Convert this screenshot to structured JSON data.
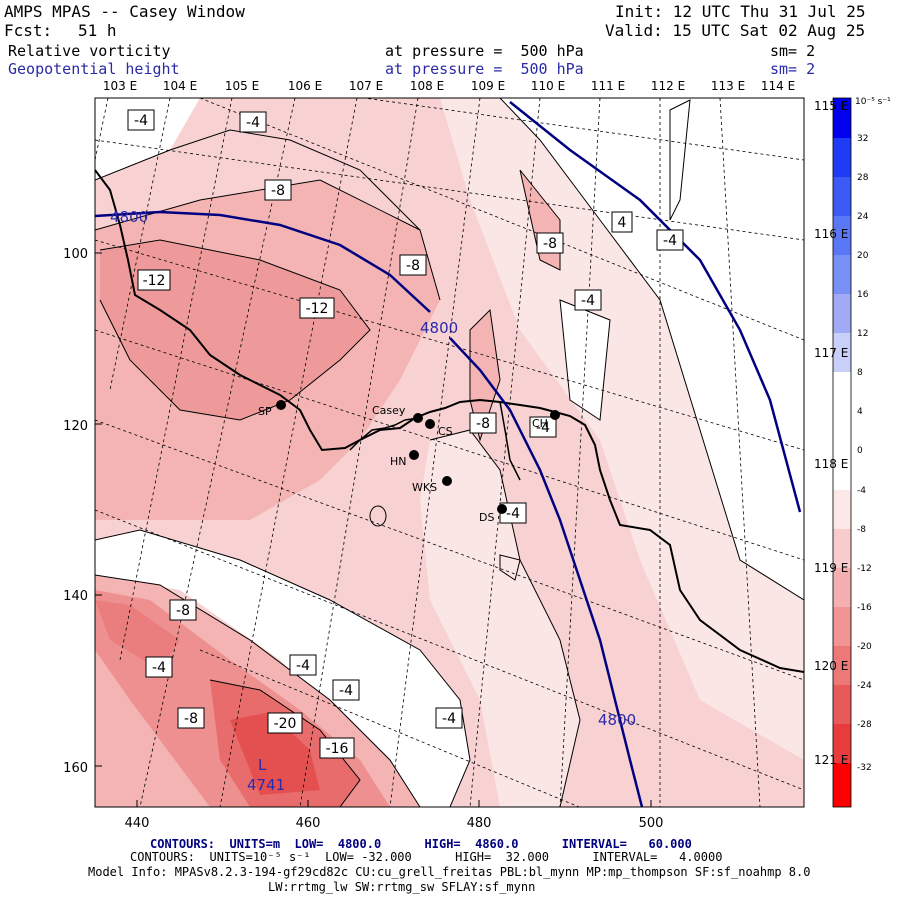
{
  "header": {
    "title": "AMPS MPAS -- Casey Window",
    "init": "Init: 12 UTC Thu 31 Jul 25",
    "fcst_label": "Fcst:",
    "fcst_value": "51 h",
    "valid": "Valid: 15 UTC Sat 02 Aug 25",
    "field1_name": "Relative vorticity",
    "field1_level": "at pressure =  500 hPa",
    "field1_sm": "sm= 2",
    "field2_name": "Geopotential height",
    "field2_level": "at pressure =  500 hPa",
    "field2_sm": "sm= 2"
  },
  "map": {
    "top_lon_labels": [
      "103 E",
      "104 E",
      "105 E",
      "106 E",
      "107 E",
      "108 E",
      "109 E",
      "110 E",
      "111 E",
      "112 E",
      "113 E",
      "114 E"
    ],
    "right_lon_labels": [
      "115 E",
      "116 E",
      "117 E",
      "118 E",
      "119 E",
      "120 E",
      "121 E"
    ],
    "y_ticks": [
      "100",
      "120",
      "140",
      "160"
    ],
    "x_ticks": [
      "440",
      "460",
      "480",
      "500"
    ],
    "stations": [
      {
        "name": "SP"
      },
      {
        "name": "Casey"
      },
      {
        "name": "CS"
      },
      {
        "name": "HN"
      },
      {
        "name": "WKS"
      },
      {
        "name": "DS"
      },
      {
        "name": "CH"
      }
    ],
    "vort_labels": [
      "-4",
      "-4",
      "-8",
      "-12",
      "-8",
      "-12",
      "-8",
      "-4",
      "4",
      "-4",
      "-8",
      "-4",
      "-4",
      "-8",
      "-4",
      "-4",
      "-8",
      "-20",
      "-16",
      "-4",
      "-4"
    ],
    "height_labels": [
      "4800",
      "4800",
      "4800",
      "4741"
    ],
    "low_marker": "L",
    "colors": {
      "height_contour": "#000080",
      "label_blue": "#2a2aa8"
    }
  },
  "colorbar": {
    "unit": "10⁻⁵ s⁻¹",
    "levels": [
      "32",
      "28",
      "24",
      "20",
      "16",
      "12",
      "8",
      "4",
      "0",
      "-4",
      "-8",
      "-12",
      "-16",
      "-20",
      "-24",
      "-28",
      "-32"
    ],
    "colors": [
      "#0000ee",
      "#1e3cf6",
      "#3c5af6",
      "#5a78f6",
      "#7890f6",
      "#a0aaf6",
      "#c8d0fa",
      "#ffffff",
      "#ffffff",
      "#fde8e8",
      "#f8cccc",
      "#f4b0b0",
      "#f09494",
      "#ec7878",
      "#e85a5a",
      "#e83c3c",
      "#ff0000"
    ]
  },
  "footer": {
    "line1": "CONTOURS:  UNITS=m  LOW=  4800.0      HIGH=  4860.0      INTERVAL=   60.000",
    "line2": "CONTOURS:  UNITS=10⁻⁵ s⁻¹  LOW= -32.000      HIGH=  32.000      INTERVAL=   4.0000",
    "line3": "Model Info: MPASv8.2.3-194-gf29cd82c CU:cu_grell_freitas PBL:bl_mynn MP:mp_thompson SF:sf_noahmp 8.0",
    "line4": "LW:rrtmg_lw SW:rrtmg_sw SFLAY:sf_mynn"
  }
}
